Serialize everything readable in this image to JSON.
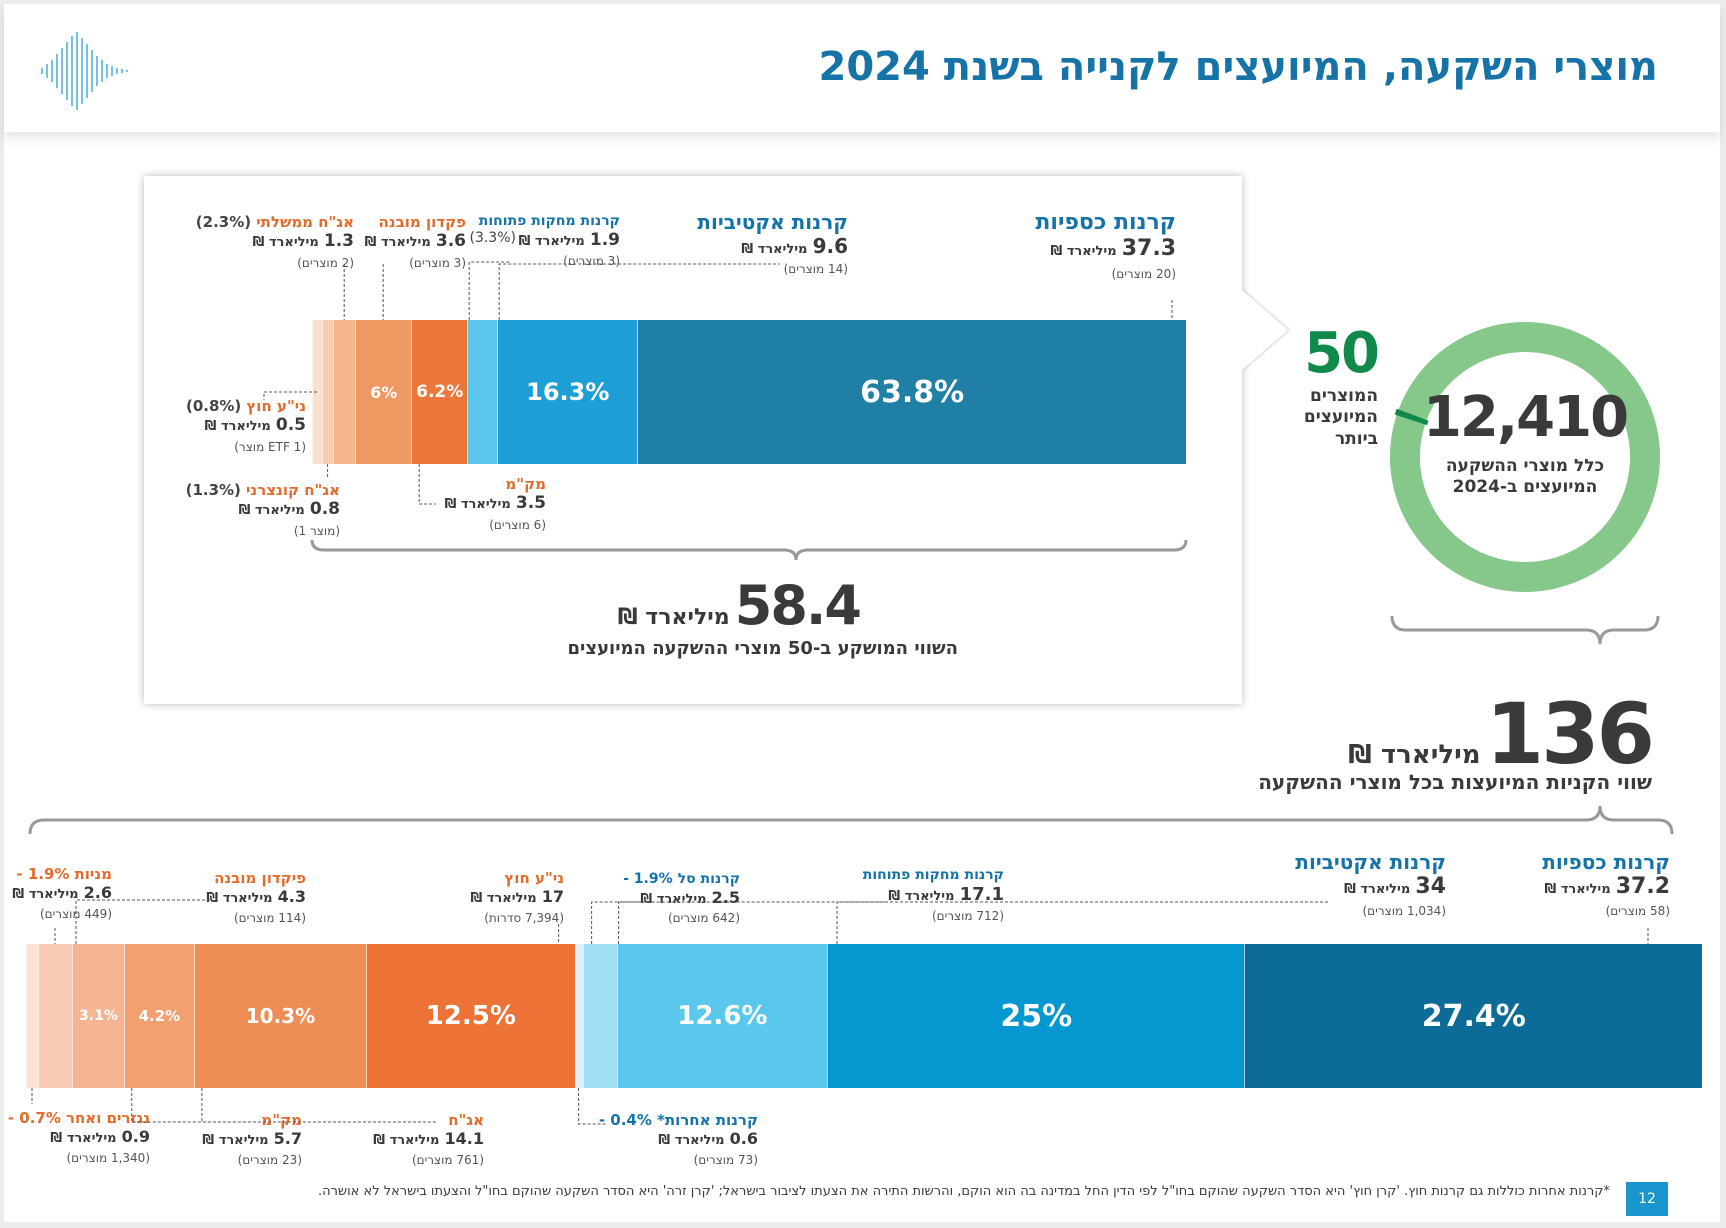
{
  "title": "מוצרי השקעה, המיועצים לקנייה בשנת 2024",
  "top_total": {
    "value": "58.4",
    "unit": "מיליארד ₪",
    "caption": "השווי המושקע ב-50  מוצרי ההשקעה המיועצים"
  },
  "donut": {
    "total_value": "12,410",
    "total_caption": "כלל מוצרי ההשקעה המיועצים ב-2024",
    "highlight_value": "50",
    "highlight_caption": "המוצרים המיועצים ביותר",
    "highlight_share": 0.004
  },
  "bottom_total": {
    "value": "136",
    "unit": "מיליארד ₪",
    "caption": "שווי הקניות המיועצות בכל מוצרי ההשקעה"
  },
  "footnote": "*קרנות אחרות כוללות גם קרנות חוץ. 'קרן חוץ' היא הסדר השקעה שהוקם בחו\"ל לפי הדין החל במדינה בה הוא הוקם, והרשות התירה את הצעתו לציבור בישראל; 'קרן זרה' היא הסדר השקעה שהוקם בחו\"ל והצעתו בישראל לא אושרה.",
  "page_number": "12",
  "colors": {
    "dark_teal": "#1f7fa5",
    "blue": "#1d9fd6",
    "light_blue": "#5cc7ec",
    "pale_blue": "#9fdff3",
    "orange": "#ec773b",
    "mid_orange": "#ef9962",
    "light_orange": "#f5b38e",
    "pale_orange": "#f8ccb0",
    "green": "#85c88a",
    "title_blue": "#1573a8"
  },
  "chart_data": [
    {
      "type": "bar",
      "stacked": true,
      "orientation": "horizontal",
      "unit": "מיליארד ₪",
      "segments": [
        {
          "name": "קרנות כספיות",
          "value": 37.3,
          "percent": 63.8,
          "percent_label": "63.8%",
          "count_label": "(20 מוצרים)"
        },
        {
          "name": "קרנות אקטיביות",
          "value": 9.6,
          "percent": 16.3,
          "percent_label": "16.3%",
          "count_label": "(14 מוצרים)"
        },
        {
          "name": "קרנות מחקות פתוחות",
          "value": 1.9,
          "percent": 3.3,
          "percent_label": "(3.3%)",
          "count_label": "(3 מוצרים)"
        },
        {
          "name": "מק\"מ",
          "value": 3.5,
          "percent": 6.2,
          "percent_label": "6.2%",
          "count_label": "(6 מוצרים)"
        },
        {
          "name": "פקדון מובנה",
          "value": 3.6,
          "percent": 6.0,
          "percent_label": "6%",
          "count_label": "(3 מוצרים)"
        },
        {
          "name": "אג\"ח ממשלתי",
          "value": 1.3,
          "percent": 2.3,
          "percent_label": "(2.3%)",
          "count_label": "(2 מוצרים)"
        },
        {
          "name": "אג\"ח קונצרני",
          "value": 0.8,
          "percent": 1.3,
          "percent_label": "(1.3%)",
          "count_label": "(מוצר 1)"
        },
        {
          "name": "ני\"ע חוץ",
          "value": 0.5,
          "percent": 0.8,
          "percent_label": "(0.8%)",
          "count_label": "(ETF 1 מוצר)"
        }
      ]
    },
    {
      "type": "bar",
      "stacked": true,
      "orientation": "horizontal",
      "unit": "מיליארד ₪",
      "segments": [
        {
          "name": "קרנות כספיות",
          "value": 37.2,
          "percent": 27.4,
          "percent_label": "27.4%",
          "count_label": "(58 מוצרים)"
        },
        {
          "name": "קרנות אקטיביות",
          "value": 34,
          "percent": 25,
          "percent_label": "25%",
          "count_label": "(1,034 מוצרים)"
        },
        {
          "name": "קרנות מחקות פתוחות",
          "value": 17.1,
          "percent": 12.6,
          "percent_label": "12.6%",
          "count_label": "(712 מוצרים)"
        },
        {
          "name": "קרנות סל",
          "value": 2.5,
          "percent": 1.9,
          "percent_label": "1.9% -",
          "count_label": "(642 מוצרים)"
        },
        {
          "name": "קרנות אחרות*",
          "value": 0.6,
          "percent": 0.4,
          "percent_label": "0.4% -",
          "count_label": "(73 מוצרים)"
        },
        {
          "name": "ני\"ע חוץ",
          "value": 17,
          "percent": 12.5,
          "percent_label": "12.5%",
          "count_label": "(7,394 סדרות)"
        },
        {
          "name": "אג\"ח",
          "value": 14.1,
          "percent": 10.3,
          "percent_label": "10.3%",
          "count_label": "(761 מוצרים)"
        },
        {
          "name": "מק\"מ",
          "value": 5.7,
          "percent": 4.2,
          "percent_label": "4.2%",
          "count_label": "(23 מוצרים)"
        },
        {
          "name": "פיקדון מובנה",
          "value": 4.3,
          "percent": 3.1,
          "percent_label": "3.1%",
          "count_label": "(114 מוצרים)"
        },
        {
          "name": "מניות",
          "value": 2.6,
          "percent": 1.9,
          "percent_label": "1.9% -",
          "count_label": "(449 מוצרים)"
        },
        {
          "name": "נגזרים ואחר",
          "value": 0.9,
          "percent": 0.7,
          "percent_label": "0.7% -",
          "count_label": "(1,340 מוצרים)"
        }
      ]
    }
  ]
}
